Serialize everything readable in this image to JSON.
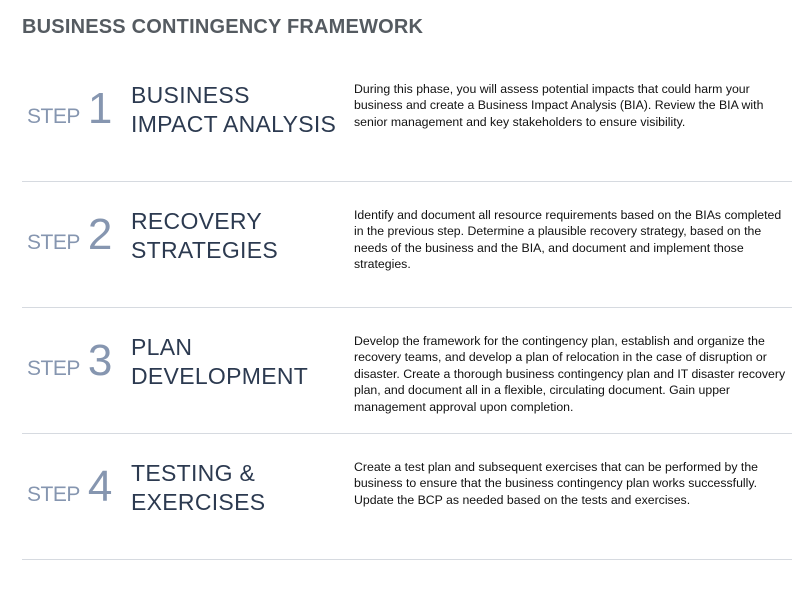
{
  "title": "BUSINESS CONTINGENCY FRAMEWORK",
  "steps": [
    {
      "label": "STEP",
      "number": "1",
      "heading": "BUSINESS IMPACT ANALYSIS",
      "description": "During this phase, you will assess potential impacts that could harm your business and create a Business Impact Analysis (BIA). Review the BIA with senior management and key stakeholders to ensure visibility."
    },
    {
      "label": "STEP",
      "number": "2",
      "heading": "RECOVERY STRATEGIES",
      "description": "Identify and document all resource requirements based on the BIAs completed in the previous step. Determine a plausible recovery strategy, based on the needs of the business and the BIA, and document and implement those strategies."
    },
    {
      "label": "STEP",
      "number": "3",
      "heading": "PLAN DEVELOPMENT",
      "description": "Develop the framework for the contingency plan, establish and organize the recovery teams, and develop a plan of relocation in the case of disruption or disaster. Create a thorough business contingency plan and IT disaster recovery plan, and document all in a flexible, circulating document. Gain upper management approval upon completion."
    },
    {
      "label": "STEP",
      "number": "4",
      "heading": "TESTING & EXERCISES",
      "description": "Create a test plan and subsequent exercises that can be performed by the business to ensure that the business contingency plan works successfully. Update the BCP as needed based on the tests and exercises."
    }
  ]
}
